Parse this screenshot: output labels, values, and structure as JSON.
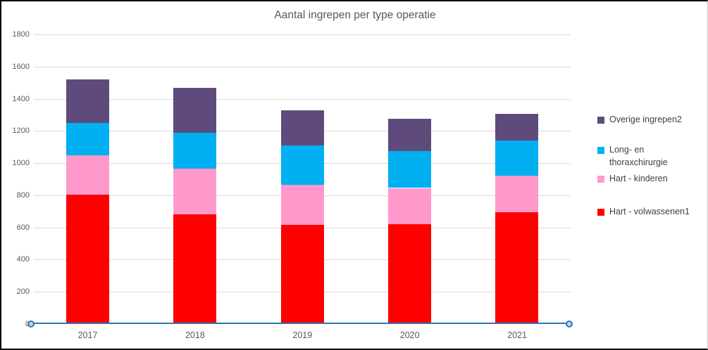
{
  "title": "Aantal ingrepen per type operatie",
  "chart_data": {
    "type": "bar",
    "stacked": true,
    "title": "Aantal ingrepen per type operatie",
    "categories": [
      "2017",
      "2018",
      "2019",
      "2020",
      "2021"
    ],
    "series": [
      {
        "name": "Hart - volwassenen1",
        "color": "#FF0000",
        "values": [
          805,
          680,
          615,
          620,
          695
        ]
      },
      {
        "name": "Hart - kinderen",
        "color": "#FF99CC",
        "values": [
          245,
          285,
          250,
          225,
          225
        ]
      },
      {
        "name": "Long- en thoraxchirurgie",
        "color": "#00B0F0",
        "values": [
          200,
          225,
          245,
          230,
          220
        ]
      },
      {
        "name": "Overige ingrepen2",
        "color": "#5E4B7B",
        "values": [
          270,
          280,
          220,
          200,
          165
        ]
      }
    ],
    "totals": [
      1520,
      1470,
      1330,
      1275,
      1305
    ],
    "xlabel": "",
    "ylabel": "",
    "ylim": [
      0,
      1800
    ],
    "ytick_step": 200,
    "ytick_labels": [
      "1800",
      "1600",
      "1400",
      "1200",
      "1000",
      "800",
      "600",
      "400",
      "200",
      "0"
    ],
    "grid": true,
    "legend_position": "right",
    "legend_order": [
      "Overige ingrepen2",
      "Long- en thoraxchirurgie",
      "Hart - kinderen",
      "Hart - volwassenen1"
    ]
  },
  "colors": {
    "axis_line": "#2E75B6",
    "axis_marker_fill": "#BDD7EE",
    "gridline": "#D9D9D9",
    "axis_text": "#595959",
    "legend_text": "#404040",
    "title_text": "#595959"
  }
}
